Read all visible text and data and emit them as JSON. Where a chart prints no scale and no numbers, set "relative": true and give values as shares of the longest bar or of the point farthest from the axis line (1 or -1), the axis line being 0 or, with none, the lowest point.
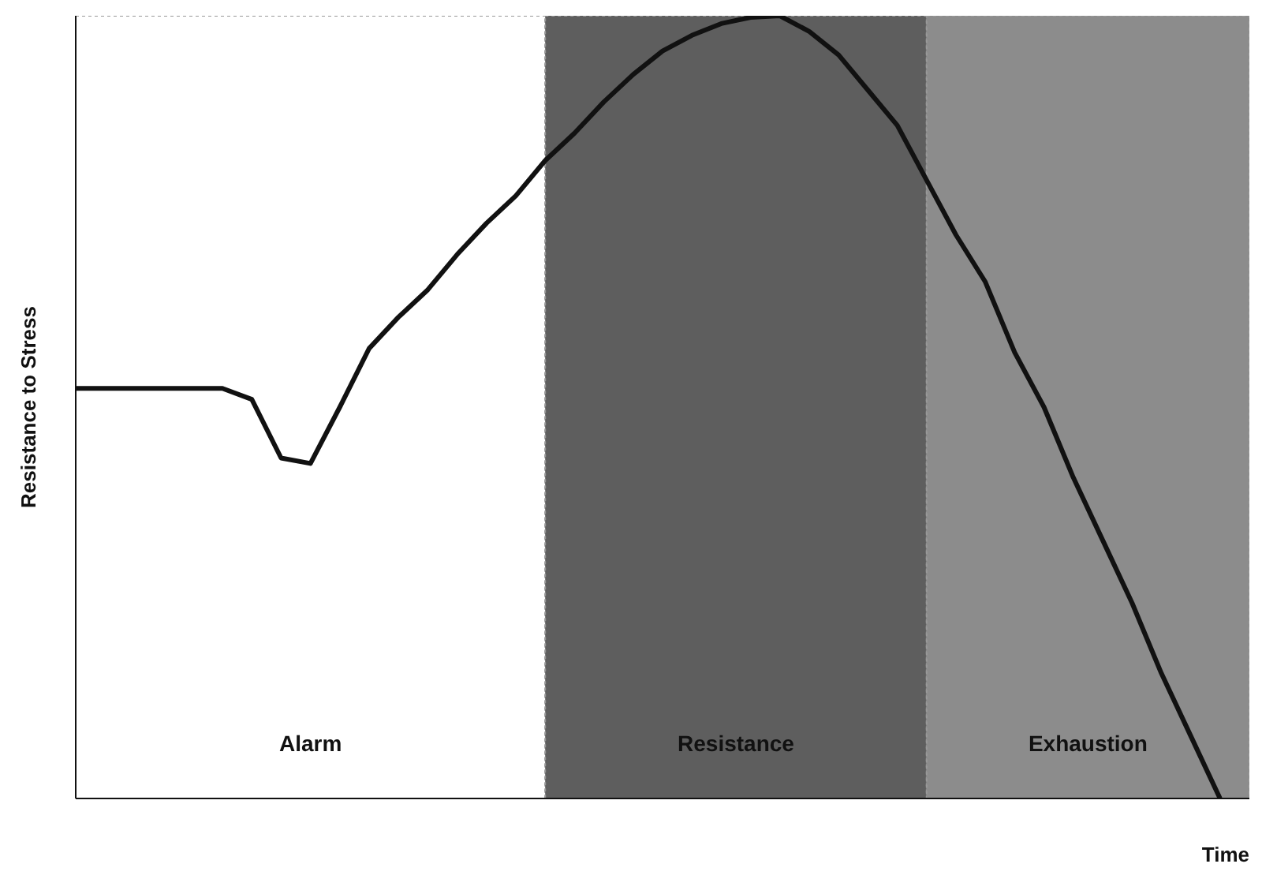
{
  "chart_data": {
    "type": "line",
    "xlabel": "Time",
    "ylabel": "Resistance to Stress",
    "relative": true,
    "marker": "none",
    "line_style": "solid",
    "categories": [
      null,
      null,
      null,
      null,
      null,
      null,
      null,
      null,
      null,
      null,
      null,
      null,
      null,
      null,
      null,
      null,
      null,
      null,
      null,
      null,
      null,
      null,
      null,
      null,
      null,
      null,
      null,
      null,
      null,
      null,
      null,
      null,
      null,
      null,
      null,
      null,
      null,
      null,
      null,
      null,
      null
    ],
    "series": [
      {
        "color": "#111111",
        "values": [
          0.524,
          0.524,
          0.524,
          0.524,
          0.524,
          0.524,
          0.51,
          0.435,
          0.428,
          0.5,
          0.575,
          0.615,
          0.65,
          0.695,
          0.735,
          0.77,
          0.815,
          0.85,
          0.89,
          0.925,
          0.955,
          0.975,
          0.99,
          0.998,
          1,
          0.98,
          0.95,
          0.905,
          0.86,
          0.79,
          0.72,
          0.66,
          0.57,
          0.5,
          0.41,
          0.33,
          0.25,
          0.16,
          0.08,
          0,
          null
        ]
      }
    ],
    "annotations": [
      "Alarm",
      "Resistance",
      "Exhaustion"
    ]
  }
}
